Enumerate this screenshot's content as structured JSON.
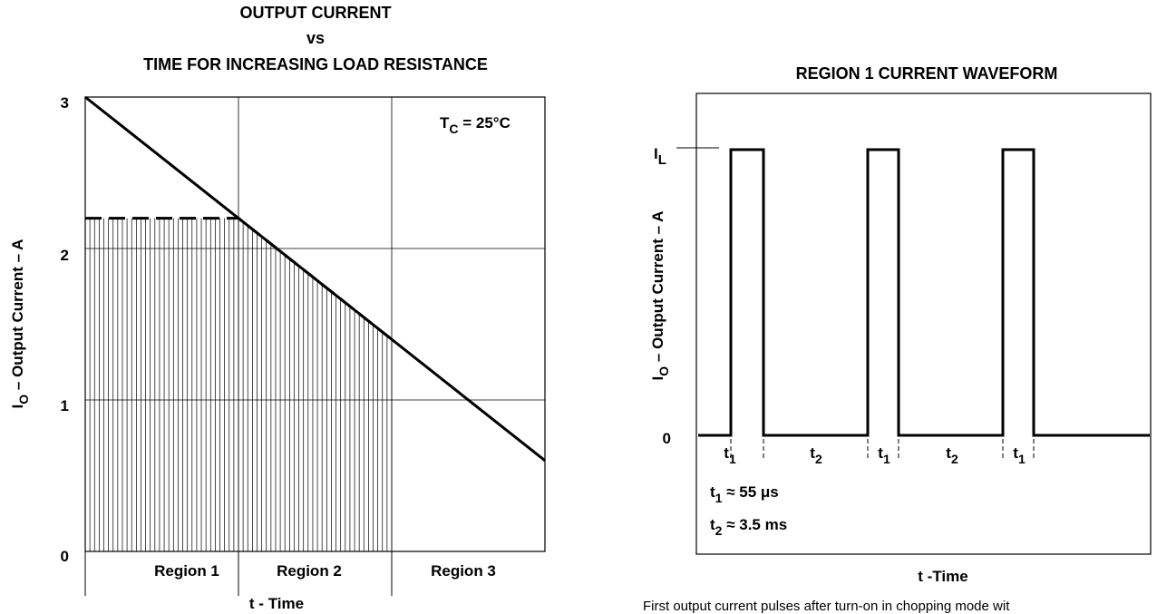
{
  "chart_data": [
    {
      "type": "line",
      "title_lines": [
        "OUTPUT CURRENT",
        "vs",
        "TIME FOR INCREASING LOAD RESISTANCE"
      ],
      "xlabel": "t - Time",
      "ylabel": {
        "main": "I",
        "sub": "O",
        "rest": " – Output Current – A"
      },
      "ylim": [
        0,
        3
      ],
      "yticks": [
        "0",
        "1",
        "2",
        "3"
      ],
      "regions": [
        "Region 1",
        "Region 2",
        "Region 3"
      ],
      "annotation": {
        "main": "T",
        "sub": "C",
        "rest": " = 25°C"
      },
      "grid": true,
      "series": [
        {
          "style": "solid",
          "points": [
            [
              0,
              3.0
            ],
            [
              3,
              0.6
            ]
          ]
        },
        {
          "style": "dashed",
          "points": [
            [
              0,
              2.2
            ],
            [
              1,
              2.2
            ],
            [
              2,
              1.4
            ]
          ]
        }
      ],
      "shaded_region": {
        "x_range": [
          0,
          2
        ],
        "style": "vertical-hatch"
      }
    },
    {
      "type": "line",
      "title": "REGION 1 CURRENT WAVEFORM",
      "xlabel": "t -Time",
      "ylabel": {
        "main": "I",
        "sub": "O",
        "rest": " – Output Current – A"
      },
      "ytick_labels": [
        {
          "main": "I",
          "sub": "L",
          "value": "IL"
        },
        {
          "main": "0",
          "sub": "",
          "value": "0"
        }
      ],
      "pulses": 3,
      "interval_labels": [
        "t1",
        "t2",
        "t1",
        "t2",
        "t1"
      ],
      "t1_label": {
        "main": "t",
        "sub": "1",
        "rest": " ≈  55 μs"
      },
      "t2_label": {
        "main": "t",
        "sub": "2",
        "rest": " ≈ 3.5 ms"
      },
      "caption": "First output current pulses after turn-on in chopping mode wit"
    }
  ]
}
